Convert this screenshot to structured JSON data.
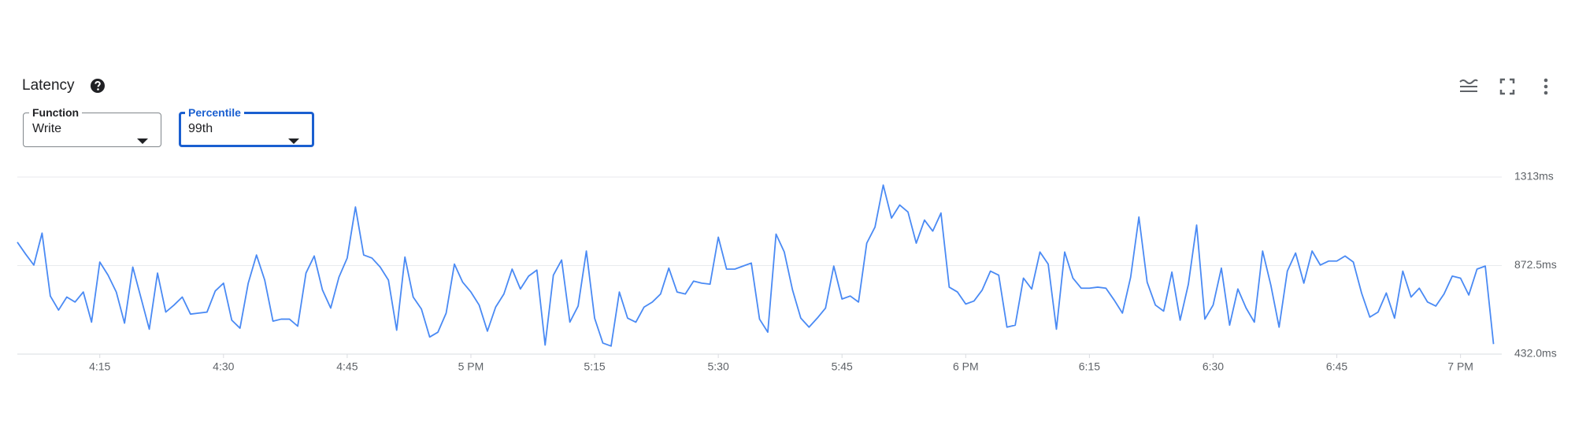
{
  "header": {
    "title": "Latency"
  },
  "filters": [
    {
      "label": "Function",
      "value": "Write"
    },
    {
      "label": "Percentile",
      "value": "99th"
    }
  ],
  "chart_data": {
    "type": "line",
    "x": [
      965,
      966,
      967,
      968,
      969,
      970,
      971,
      972,
      973,
      974,
      975,
      976,
      977,
      978,
      979,
      980,
      981,
      982,
      983,
      984,
      985,
      986,
      987,
      988,
      989,
      990,
      991,
      992,
      993,
      994,
      995,
      996,
      997,
      998,
      999,
      1000,
      1001,
      1002,
      1003,
      1004,
      1005,
      1006,
      1007,
      1008,
      1009,
      1010,
      1011,
      1012,
      1013,
      1014,
      1015,
      1016,
      1017,
      1018,
      1019,
      1020,
      1021,
      1022,
      1023,
      1024,
      1025,
      1026,
      1027,
      1028,
      1029,
      1030,
      1031,
      1032,
      1033,
      1034,
      1035,
      1036,
      1037,
      1038,
      1039,
      1040,
      1041,
      1042,
      1043,
      1044,
      1045,
      1046,
      1047,
      1048,
      1049,
      1050,
      1051,
      1052,
      1053,
      1054,
      1055,
      1056,
      1057,
      1058,
      1059,
      1060,
      1061,
      1062,
      1063,
      1064,
      1065,
      1066,
      1067,
      1068,
      1069,
      1070,
      1071,
      1072,
      1073,
      1074,
      1075,
      1076,
      1077,
      1078,
      1079,
      1080,
      1081,
      1082,
      1083,
      1084,
      1085,
      1086,
      1087,
      1088,
      1089,
      1090,
      1091,
      1092,
      1093,
      1094,
      1095,
      1096,
      1097,
      1098,
      1099,
      1100,
      1101,
      1102,
      1103,
      1104,
      1105,
      1106,
      1107,
      1108,
      1109,
      1110,
      1111,
      1112,
      1113,
      1114,
      1115,
      1116,
      1117,
      1118,
      1119,
      1120,
      1121,
      1122,
      1123,
      1124,
      1125,
      1126,
      1127,
      1128,
      1129,
      1130,
      1131,
      1132,
      1133,
      1134,
      1135,
      1136,
      1137,
      1138,
      1139,
      1140,
      1141,
      1142,
      1143,
      1144
    ],
    "series": [
      {
        "color": "#4a8af4",
        "values": [
          989,
          930,
          875,
          1034,
          721,
          651,
          716,
          691,
          741,
          591,
          890,
          825,
          741,
          586,
          865,
          711,
          556,
          835,
          641,
          676,
          716,
          631,
          636,
          641,
          746,
          785,
          601,
          561,
          785,
          925,
          800,
          596,
          606,
          606,
          571,
          835,
          920,
          751,
          661,
          815,
          910,
          1164,
          925,
          910,
          865,
          800,
          551,
          915,
          716,
          656,
          517,
          541,
          636,
          880,
          790,
          741,
          676,
          546,
          666,
          731,
          855,
          756,
          820,
          850,
          477,
          825,
          900,
          591,
          671,
          945,
          611,
          487,
          472,
          741,
          611,
          591,
          666,
          691,
          731,
          860,
          741,
          731,
          795,
          785,
          780,
          1014,
          855,
          855,
          870,
          885,
          606,
          541,
          1029,
          940,
          751,
          611,
          566,
          611,
          661,
          870,
          706,
          721,
          691,
          984,
          1064,
          1273,
          1109,
          1174,
          1139,
          984,
          1099,
          1044,
          1134,
          765,
          741,
          681,
          696,
          751,
          845,
          825,
          566,
          576,
          810,
          756,
          940,
          880,
          556,
          940,
          810,
          760,
          760,
          765,
          760,
          701,
          636,
          815,
          1114,
          790,
          676,
          646,
          840,
          601,
          780,
          1074,
          606,
          676,
          860,
          576,
          756,
          661,
          591,
          945,
          775,
          566,
          845,
          935,
          785,
          945,
          875,
          895,
          895,
          920,
          890,
          736,
          616,
          641,
          736,
          611,
          845,
          716,
          760,
          691,
          671,
          731,
          820,
          810,
          726,
          855,
          870,
          482
        ]
      }
    ],
    "xlim": [
      965,
      1145
    ],
    "xticks": [
      {
        "value": 975,
        "label": "4:15"
      },
      {
        "value": 990,
        "label": "4:30"
      },
      {
        "value": 1005,
        "label": "4:45"
      },
      {
        "value": 1020,
        "label": "5 PM"
      },
      {
        "value": 1035,
        "label": "5:15"
      },
      {
        "value": 1050,
        "label": "5:30"
      },
      {
        "value": 1065,
        "label": "5:45"
      },
      {
        "value": 1080,
        "label": "6 PM"
      },
      {
        "value": 1095,
        "label": "6:15"
      },
      {
        "value": 1110,
        "label": "6:30"
      },
      {
        "value": 1125,
        "label": "6:45"
      },
      {
        "value": 1140,
        "label": "7 PM"
      }
    ],
    "ylim": [
      432,
      1313
    ],
    "yticks": [
      {
        "value": 1313,
        "label": "1313ms"
      },
      {
        "value": 872.5,
        "label": "872.5ms"
      },
      {
        "value": 432,
        "label": "432.0ms"
      }
    ],
    "grid": true
  }
}
